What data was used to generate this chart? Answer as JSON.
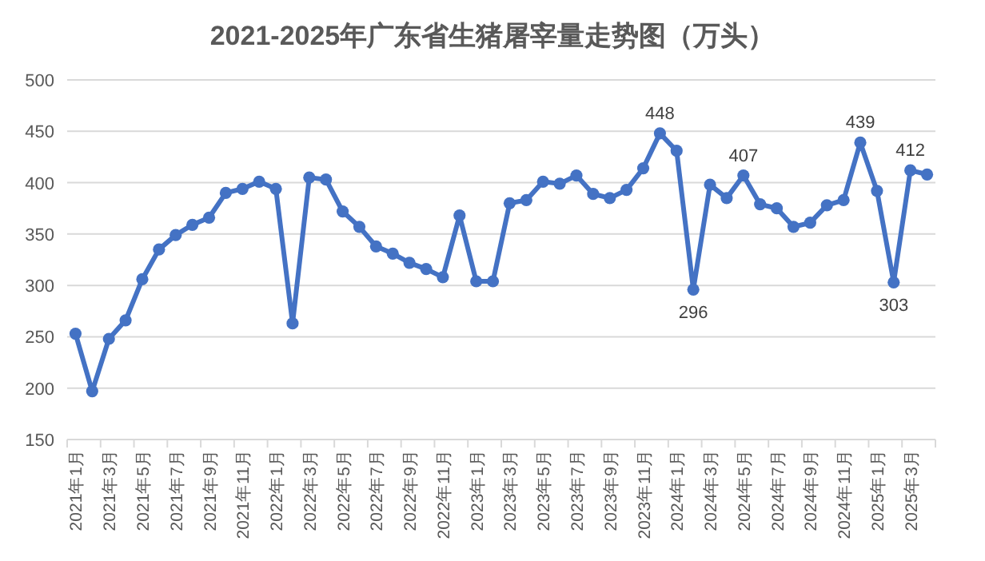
{
  "chart_data": {
    "type": "line",
    "title": "2021-2025年广东省生猪屠宰量走势图（万头）",
    "categories": [
      "2021年1月",
      null,
      "2021年3月",
      null,
      "2021年5月",
      null,
      "2021年7月",
      null,
      "2021年9月",
      null,
      "2021年11月",
      null,
      "2022年1月",
      null,
      "2022年3月",
      null,
      "2022年5月",
      null,
      "2022年7月",
      null,
      "2022年9月",
      null,
      "2022年11月",
      null,
      "2023年1月",
      null,
      "2023年3月",
      null,
      "2023年5月",
      null,
      "2023年7月",
      null,
      "2023年9月",
      null,
      "2023年11月",
      null,
      "2024年1月",
      null,
      "2024年3月",
      null,
      "2024年5月",
      null,
      "2024年7月",
      null,
      "2024年9月",
      null,
      "2024年11月",
      null,
      "2025年1月",
      null,
      "2025年3月",
      null
    ],
    "values": [
      253,
      197,
      248,
      266,
      306,
      335,
      349,
      359,
      366,
      390,
      394,
      401,
      394,
      263,
      405,
      403,
      372,
      357,
      338,
      331,
      322,
      316,
      308,
      368,
      304,
      304,
      380,
      383,
      401,
      399,
      407,
      389,
      385,
      393,
      414,
      448,
      431,
      296,
      398,
      385,
      407,
      379,
      375,
      357,
      361,
      378,
      383,
      439,
      392,
      303,
      412,
      408
    ],
    "value_labels": [
      null,
      null,
      null,
      null,
      null,
      null,
      null,
      null,
      null,
      null,
      null,
      null,
      null,
      null,
      null,
      null,
      null,
      null,
      null,
      null,
      null,
      null,
      null,
      null,
      null,
      null,
      null,
      null,
      null,
      null,
      null,
      null,
      null,
      null,
      null,
      "448",
      null,
      "296",
      null,
      null,
      "407",
      null,
      null,
      null,
      null,
      null,
      null,
      "439",
      null,
      "303",
      "412",
      null
    ],
    "color": "#4472c4",
    "marker": "circle",
    "grid": "y",
    "ylim": [
      150,
      500
    ],
    "yticks": [
      150,
      200,
      250,
      300,
      350,
      400,
      450,
      500
    ]
  }
}
